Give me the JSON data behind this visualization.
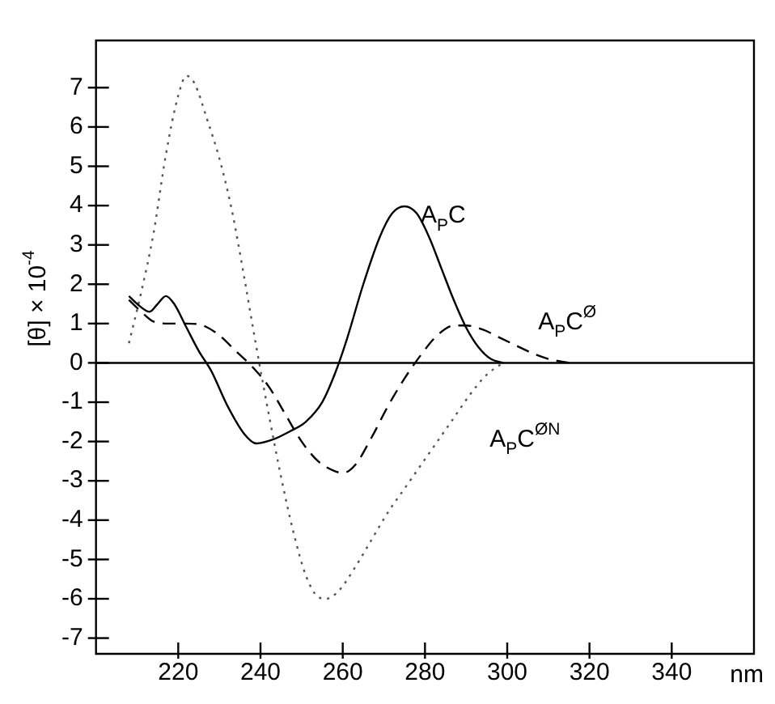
{
  "chart_data": {
    "type": "line",
    "xlabel": "nm",
    "ylabel": "[θ] × 10$^{-4}$",
    "xlim": [
      200,
      360
    ],
    "xticks": [
      220,
      240,
      260,
      280,
      300,
      320,
      340
    ],
    "ylim": [
      -7.4,
      8.2
    ],
    "yticks": [
      -7,
      -6,
      -5,
      -4,
      -3,
      -2,
      -1,
      0,
      1,
      2,
      3,
      4,
      5,
      6,
      7
    ],
    "grid": false,
    "legend": false,
    "marker": "none",
    "ref_lines": [
      {
        "axis": "y",
        "value": 0,
        "color": "#000000",
        "line_style": "solid"
      }
    ],
    "series": [
      {
        "name": "A$_{P}$C",
        "color": "#000000",
        "line_style": "solid",
        "x": [
          208,
          210,
          213,
          215,
          217,
          219,
          222,
          225,
          228,
          232,
          236,
          239,
          243,
          247,
          251,
          255,
          258,
          261,
          265,
          269,
          272,
          275,
          278,
          281,
          284,
          287,
          290,
          293,
          296,
          299
        ],
        "values": [
          1.7,
          1.5,
          1.3,
          1.5,
          1.7,
          1.5,
          0.9,
          0.3,
          -0.2,
          -1.1,
          -1.8,
          -2.05,
          -1.95,
          -1.75,
          -1.5,
          -1.0,
          -0.3,
          0.6,
          2.0,
          3.2,
          3.8,
          3.98,
          3.8,
          3.2,
          2.4,
          1.6,
          0.9,
          0.4,
          0.1,
          0
        ]
      },
      {
        "name": "A$_{P}$C$^{Ø}$",
        "color": "#000000",
        "line_style": "dashed",
        "x": [
          208,
          211,
          214,
          218,
          222,
          226,
          230,
          234,
          238,
          242,
          246,
          250,
          254,
          258,
          260,
          263,
          267,
          271,
          275,
          279,
          283,
          287,
          290,
          294,
          298,
          302,
          306,
          310,
          315
        ],
        "values": [
          1.6,
          1.3,
          1.05,
          1.0,
          1.0,
          0.95,
          0.7,
          0.3,
          -0.1,
          -0.6,
          -1.3,
          -2.0,
          -2.5,
          -2.75,
          -2.8,
          -2.6,
          -1.9,
          -1.1,
          -0.4,
          0.2,
          0.7,
          0.95,
          0.95,
          0.85,
          0.65,
          0.45,
          0.25,
          0.1,
          0
        ]
      },
      {
        "name": "A$_{P}$C$^{ØN}$",
        "color": "#555555",
        "line_style": "dotted",
        "x": [
          208,
          211,
          214,
          217,
          220,
          222,
          224,
          227,
          230,
          233,
          236,
          239,
          242,
          245,
          248,
          251,
          254,
          256,
          259,
          263,
          267,
          271,
          275,
          279,
          283,
          287,
          291,
          295,
          299
        ],
        "values": [
          0.5,
          1.8,
          3.3,
          5.3,
          6.8,
          7.3,
          7.1,
          6.2,
          5.2,
          3.9,
          2.2,
          0.4,
          -1.3,
          -2.9,
          -4.3,
          -5.4,
          -5.95,
          -6.0,
          -5.8,
          -5.2,
          -4.5,
          -3.8,
          -3.2,
          -2.6,
          -2.0,
          -1.4,
          -0.8,
          -0.3,
          0
        ]
      }
    ]
  }
}
